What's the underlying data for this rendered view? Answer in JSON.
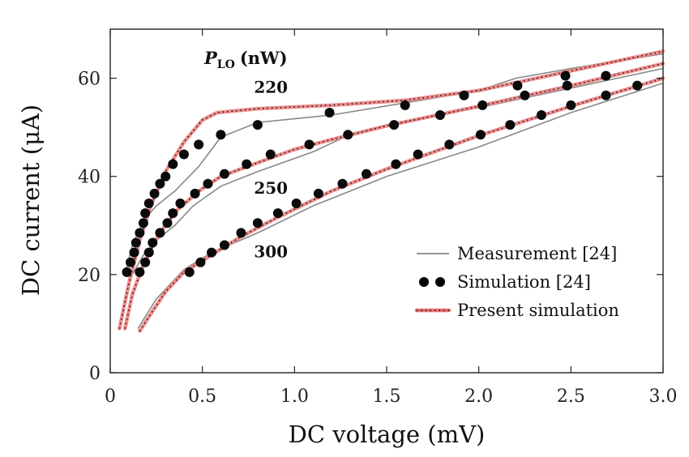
{
  "chart_data": {
    "type": "line",
    "xlabel": "DC voltage (mV)",
    "ylabel": "DC current (μA)",
    "xlim": [
      0,
      3.0
    ],
    "ylim": [
      0,
      70
    ],
    "x_ticks": [
      0,
      0.5,
      1.0,
      1.5,
      2.0,
      2.5,
      3.0
    ],
    "x_tick_labels": [
      "0",
      "0.5",
      "1.0",
      "1.5",
      "2.0",
      "2.5",
      "3.0"
    ],
    "y_ticks": [
      0,
      20,
      40,
      60
    ],
    "y_tick_labels": [
      "0",
      "20",
      "40",
      "60"
    ],
    "grid": false,
    "legend_position": "bottom-right",
    "legend": [
      {
        "label": "Measurement [24]",
        "style": "line",
        "color": "#888888"
      },
      {
        "label": "Simulation [24]",
        "style": "dots",
        "color": "#000000"
      },
      {
        "label": "Present simulation",
        "style": "dotted-line",
        "color": "#e87070"
      }
    ],
    "param_label": {
      "symbol": "P",
      "subscript": "LO",
      "unit": "(nW)"
    },
    "curve_labels": [
      {
        "text": "220",
        "x": 0.78,
        "y": 57
      },
      {
        "text": "250",
        "x": 0.78,
        "y": 36.5
      },
      {
        "text": "300",
        "x": 0.78,
        "y": 23.5
      }
    ],
    "series": [
      {
        "name": "220",
        "measurement": [
          [
            0.08,
            20
          ],
          [
            0.12,
            26
          ],
          [
            0.18,
            31
          ],
          [
            0.25,
            34
          ],
          [
            0.35,
            37
          ],
          [
            0.48,
            42
          ],
          [
            0.6,
            48
          ],
          [
            0.8,
            51
          ],
          [
            1.2,
            52.5
          ],
          [
            1.6,
            55
          ],
          [
            2.0,
            57.5
          ],
          [
            2.2,
            60
          ],
          [
            2.5,
            62
          ],
          [
            3.0,
            65
          ]
        ],
        "simulation": [
          [
            0.09,
            20.5
          ],
          [
            0.11,
            22.5
          ],
          [
            0.13,
            24.5
          ],
          [
            0.14,
            26.5
          ],
          [
            0.16,
            28.5
          ],
          [
            0.18,
            30.5
          ],
          [
            0.19,
            32.5
          ],
          [
            0.21,
            34.5
          ],
          [
            0.24,
            36.5
          ],
          [
            0.27,
            38.5
          ],
          [
            0.3,
            40
          ],
          [
            0.34,
            42.5
          ],
          [
            0.4,
            44.5
          ],
          [
            0.48,
            46.5
          ],
          [
            0.6,
            48.5
          ],
          [
            0.8,
            50.5
          ],
          [
            1.19,
            53
          ],
          [
            1.6,
            54.5
          ],
          [
            1.92,
            56.5
          ],
          [
            2.21,
            58.5
          ],
          [
            2.47,
            60.5
          ],
          [
            2.69,
            60.5
          ]
        ],
        "present": [
          [
            0.05,
            9
          ],
          [
            0.1,
            18
          ],
          [
            0.16,
            27
          ],
          [
            0.22,
            34
          ],
          [
            0.3,
            41
          ],
          [
            0.4,
            47
          ],
          [
            0.5,
            51.5
          ],
          [
            0.58,
            53
          ],
          [
            0.8,
            53.8
          ],
          [
            1.2,
            54.5
          ],
          [
            1.6,
            55.5
          ],
          [
            2.0,
            57.5
          ],
          [
            2.5,
            61.5
          ],
          [
            3.0,
            65.5
          ]
        ]
      },
      {
        "name": "250",
        "measurement": [
          [
            0.12,
            20
          ],
          [
            0.18,
            24
          ],
          [
            0.25,
            27
          ],
          [
            0.35,
            30
          ],
          [
            0.45,
            34
          ],
          [
            0.6,
            38
          ],
          [
            0.8,
            41
          ],
          [
            1.1,
            45
          ],
          [
            1.3,
            48.5
          ],
          [
            1.5,
            50.5
          ],
          [
            2.0,
            54
          ],
          [
            2.5,
            58
          ],
          [
            3.0,
            62
          ]
        ],
        "simulation": [
          [
            0.16,
            20.5
          ],
          [
            0.19,
            22.5
          ],
          [
            0.21,
            24.5
          ],
          [
            0.23,
            26.5
          ],
          [
            0.27,
            28.5
          ],
          [
            0.31,
            30.5
          ],
          [
            0.34,
            32.5
          ],
          [
            0.38,
            34.5
          ],
          [
            0.46,
            36.5
          ],
          [
            0.53,
            38.5
          ],
          [
            0.62,
            40.5
          ],
          [
            0.74,
            42.5
          ],
          [
            0.87,
            44.5
          ],
          [
            1.08,
            46.5
          ],
          [
            1.29,
            48.5
          ],
          [
            1.54,
            50.5
          ],
          [
            1.79,
            52.5
          ],
          [
            2.02,
            54.5
          ],
          [
            2.25,
            56.5
          ],
          [
            2.48,
            58.5
          ]
        ],
        "present": [
          [
            0.08,
            9
          ],
          [
            0.12,
            16
          ],
          [
            0.18,
            22
          ],
          [
            0.26,
            28
          ],
          [
            0.36,
            33
          ],
          [
            0.48,
            37
          ],
          [
            0.6,
            40
          ],
          [
            0.8,
            42.8
          ],
          [
            1.0,
            45.5
          ],
          [
            1.2,
            47.5
          ],
          [
            1.5,
            50.3
          ],
          [
            2.0,
            54.3
          ],
          [
            2.5,
            58.5
          ],
          [
            3.0,
            63
          ]
        ]
      },
      {
        "name": "300",
        "measurement": [
          [
            0.15,
            9
          ],
          [
            0.25,
            15
          ],
          [
            0.4,
            21
          ],
          [
            0.55,
            24.5
          ],
          [
            0.8,
            28.5
          ],
          [
            1.1,
            34
          ],
          [
            1.5,
            40
          ],
          [
            2.0,
            46
          ],
          [
            2.5,
            53
          ],
          [
            3.0,
            59
          ]
        ],
        "simulation": [
          [
            0.43,
            20.5
          ],
          [
            0.49,
            22.5
          ],
          [
            0.55,
            24.5
          ],
          [
            0.62,
            26
          ],
          [
            0.71,
            28.5
          ],
          [
            0.8,
            30.5
          ],
          [
            0.91,
            32.5
          ],
          [
            1.01,
            34.5
          ],
          [
            1.13,
            36.5
          ],
          [
            1.26,
            38.5
          ],
          [
            1.39,
            40.5
          ],
          [
            1.55,
            42.5
          ],
          [
            1.67,
            44.5
          ],
          [
            1.84,
            46.5
          ],
          [
            2.01,
            48.5
          ],
          [
            2.17,
            50.5
          ],
          [
            2.34,
            52.5
          ],
          [
            2.5,
            54.5
          ],
          [
            2.69,
            56.5
          ],
          [
            2.86,
            58.5
          ]
        ],
        "present": [
          [
            0.16,
            8.5
          ],
          [
            0.22,
            12
          ],
          [
            0.3,
            16.5
          ],
          [
            0.4,
            20.5
          ],
          [
            0.55,
            24
          ],
          [
            0.7,
            27.5
          ],
          [
            0.9,
            31.5
          ],
          [
            1.2,
            37
          ],
          [
            1.5,
            41.5
          ],
          [
            2.0,
            48.3
          ],
          [
            2.5,
            54.3
          ],
          [
            3.0,
            60
          ]
        ]
      }
    ]
  }
}
